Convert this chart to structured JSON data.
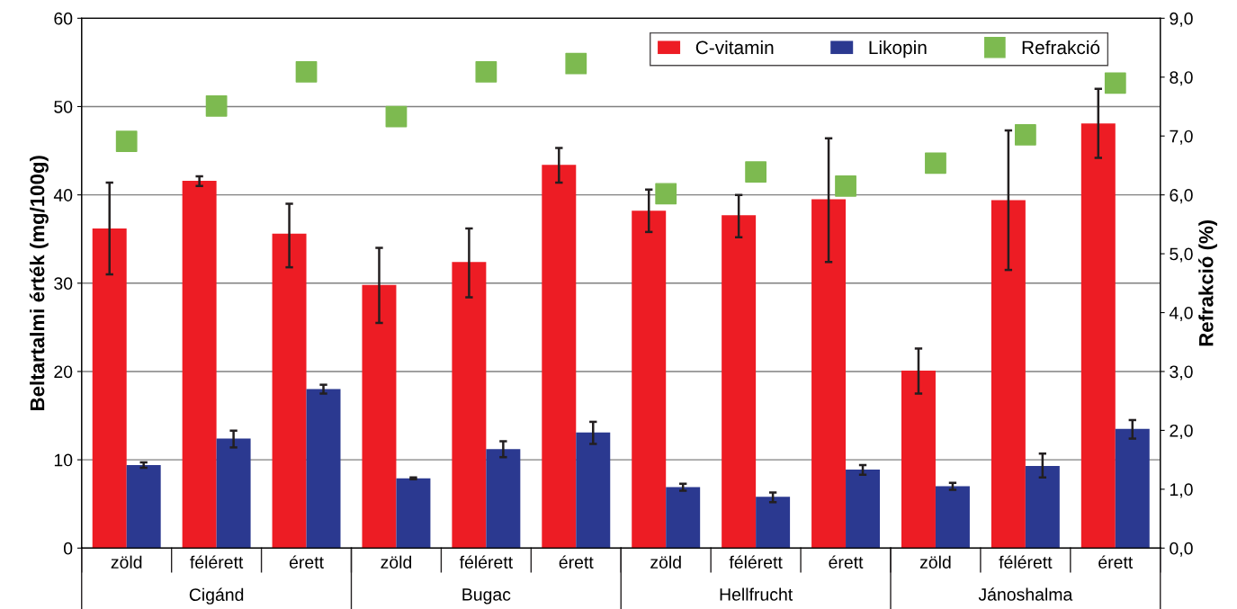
{
  "chart_data": {
    "type": "bar",
    "categories": [
      "zöld",
      "félérett",
      "érett",
      "zöld",
      "félérett",
      "érett",
      "zöld",
      "félérett",
      "érett",
      "zöld",
      "félérett",
      "érett"
    ],
    "annotations": [
      "Cigánd",
      "Bugac",
      "Hellfrucht",
      "Jánoshalma"
    ],
    "ylabel": "Beltartalmi érték (mg/100g)",
    "y2label": "Refrakció (%)",
    "ylim": [
      0,
      60
    ],
    "yticks": [
      0,
      10,
      20,
      30,
      40,
      50,
      60
    ],
    "y2lim": [
      0,
      9
    ],
    "y2ticks": [
      {
        "value": 0,
        "label": "0,0"
      },
      {
        "value": 1,
        "label": "1,0"
      },
      {
        "value": 2,
        "label": "2,0"
      },
      {
        "value": 3,
        "label": "3,0"
      },
      {
        "value": 4,
        "label": "4,0"
      },
      {
        "value": 5,
        "label": "5,0"
      },
      {
        "value": 6,
        "label": "6,0"
      },
      {
        "value": 7,
        "label": "7,0"
      },
      {
        "value": 8,
        "label": "8,0"
      },
      {
        "value": 9,
        "label": "9,0"
      }
    ],
    "grid": "y",
    "legend": "top right",
    "series": [
      {
        "name": "C-vitamin",
        "color": "#ed1c24",
        "values": [
          36.2,
          41.6,
          35.6,
          29.8,
          32.4,
          43.4,
          38.2,
          37.7,
          39.5,
          20.1,
          39.4,
          48.1
        ],
        "errors": [
          [
            31.0,
            41.4
          ],
          [
            41.0,
            42.1
          ],
          [
            31.8,
            39.0
          ],
          [
            25.5,
            34.0
          ],
          [
            28.4,
            36.2
          ],
          [
            41.4,
            45.3
          ],
          [
            35.8,
            40.6
          ],
          [
            35.2,
            40.0
          ],
          [
            32.4,
            46.4
          ],
          [
            17.5,
            22.6
          ],
          [
            31.5,
            47.3
          ],
          [
            44.2,
            52.0
          ]
        ]
      },
      {
        "name": "Likopin",
        "color": "#2b3990",
        "values": [
          9.4,
          12.4,
          18.0,
          7.9,
          11.2,
          13.1,
          6.9,
          5.8,
          8.9,
          7.0,
          9.3,
          13.5
        ],
        "errors": [
          [
            9.1,
            9.7
          ],
          [
            11.4,
            13.3
          ],
          [
            17.5,
            18.5
          ],
          [
            7.8,
            8.0
          ],
          [
            10.3,
            12.1
          ],
          [
            11.8,
            14.3
          ],
          [
            6.5,
            7.3
          ],
          [
            5.2,
            6.3
          ],
          [
            8.3,
            9.4
          ],
          [
            6.6,
            7.4
          ],
          [
            8.0,
            10.7
          ],
          [
            12.4,
            14.5
          ]
        ]
      },
      {
        "name": "Refrakció",
        "type": "scatter",
        "axis": "y2",
        "marker": "square",
        "color": "#7dba50",
        "values": [
          6.91,
          7.51,
          8.09,
          7.33,
          8.09,
          8.23,
          6.02,
          6.39,
          6.15,
          6.54,
          7.02,
          7.9
        ]
      }
    ]
  }
}
